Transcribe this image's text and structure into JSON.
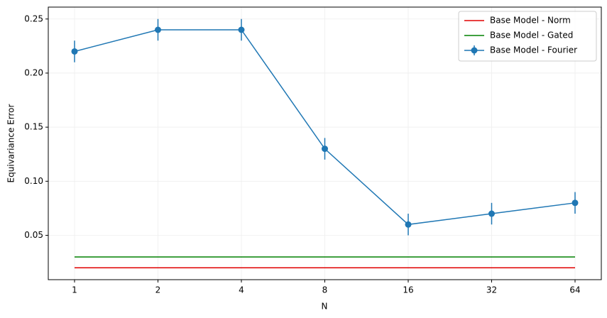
{
  "chart_data": {
    "type": "line",
    "x_label": "N",
    "y_label": "Equivariance Error",
    "categories": [
      "1",
      "2",
      "4",
      "8",
      "16",
      "32",
      "64"
    ],
    "series": [
      {
        "name": "Base Model - Norm",
        "color": "#e00000",
        "values": [
          0.02,
          0.02,
          0.02,
          0.02,
          0.02,
          0.02,
          0.02
        ]
      },
      {
        "name": "Base Model - Gated",
        "color": "#008000",
        "values": [
          0.03,
          0.03,
          0.03,
          0.03,
          0.03,
          0.03,
          0.03
        ]
      },
      {
        "name": "Base Model - Fourier",
        "color": "#1f77b4",
        "values": [
          0.22,
          0.24,
          0.24,
          0.13,
          0.06,
          0.07,
          0.08
        ],
        "errors": [
          0.01,
          0.01,
          0.01,
          0.01,
          0.01,
          0.01,
          0.01
        ],
        "marker": true
      }
    ],
    "ylim": [
      0.009,
      0.261
    ],
    "yticks": [
      0.05,
      {
        "value": 0.1,
        "label": "0.10"
      },
      0.15,
      {
        "value": 0.2,
        "label": "0.20"
      },
      0.25
    ],
    "grid": true,
    "legend": "upper right"
  }
}
